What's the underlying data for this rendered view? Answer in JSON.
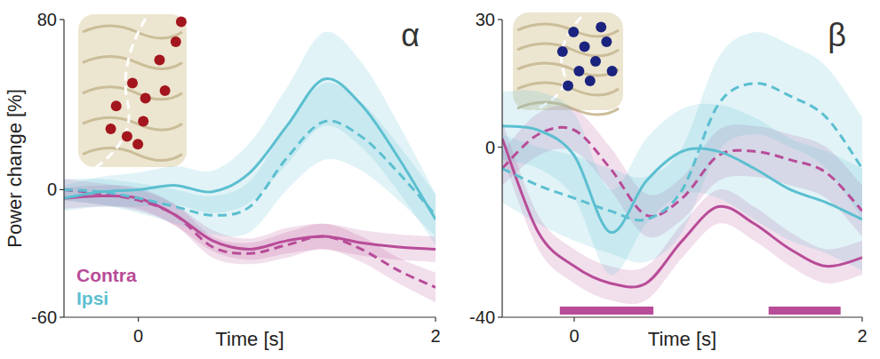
{
  "chart_data": [
    {
      "type": "line",
      "title": "α",
      "x_label": "Time [s]",
      "y_label": "Power change [%]",
      "x": [
        -0.5,
        -0.25,
        0,
        0.25,
        0.5,
        0.75,
        1.0,
        1.25,
        1.5,
        1.75,
        2.0
      ],
      "xlim": [
        -0.5,
        2
      ],
      "xticks": [
        0,
        2
      ],
      "ylim": [
        -60,
        80
      ],
      "yticks": [
        -60,
        0,
        80
      ],
      "legend": "lower left",
      "series": [
        {
          "name": "Contra",
          "color": "#b84c98",
          "line_style": "solid",
          "values": [
            -4,
            -3,
            -4,
            -12,
            -24,
            -28,
            -24,
            -22,
            -25,
            -27,
            -28
          ],
          "error": [
            5,
            5,
            5,
            5,
            5,
            5,
            6,
            6,
            6,
            6,
            6
          ]
        },
        {
          "name": "Contra",
          "color": "#b84c98",
          "line_style": "dashed",
          "values": [
            0,
            -2,
            -5,
            -12,
            -27,
            -30,
            -26,
            -22,
            -28,
            -38,
            -46
          ],
          "error": [
            5,
            5,
            5,
            5,
            5,
            5,
            6,
            6,
            6,
            6,
            7
          ]
        },
        {
          "name": "Ipsi",
          "color": "#5bbfd0",
          "line_style": "solid",
          "values": [
            -4,
            -1,
            0,
            2,
            -1,
            8,
            30,
            52,
            40,
            15,
            -14
          ],
          "error": [
            6,
            7,
            8,
            9,
            10,
            14,
            18,
            22,
            20,
            16,
            12
          ]
        },
        {
          "name": "Ipsi",
          "color": "#5bbfd0",
          "line_style": "dashed",
          "values": [
            0,
            -1,
            -4,
            -8,
            -12,
            -8,
            15,
            32,
            25,
            8,
            -12
          ],
          "error": [
            5,
            6,
            7,
            8,
            9,
            12,
            15,
            18,
            16,
            13,
            10
          ]
        }
      ]
    },
    {
      "type": "line",
      "title": "β",
      "x_label": "Time [s]",
      "x": [
        -0.5,
        -0.25,
        0,
        0.25,
        0.5,
        0.75,
        1.0,
        1.25,
        1.5,
        1.75,
        2.0
      ],
      "xlim": [
        -0.5,
        2
      ],
      "xticks": [
        0,
        2
      ],
      "ylim": [
        -40,
        30
      ],
      "yticks": [
        -40,
        0,
        30
      ],
      "sig_bars": [
        [
          -0.1,
          0.55
        ],
        [
          1.35,
          1.85
        ]
      ],
      "sig_color": "#b84c98",
      "series": [
        {
          "color": "#b84c98",
          "line_style": "solid",
          "values": [
            2,
            -20,
            -28,
            -32,
            -32,
            -22,
            -14,
            -18,
            -24,
            -28,
            -26
          ],
          "error": [
            4,
            4,
            4,
            4,
            4,
            4,
            4,
            4,
            4,
            4,
            4
          ]
        },
        {
          "color": "#b84c98",
          "line_style": "dashed",
          "values": [
            -5,
            3,
            4,
            -5,
            -16,
            -12,
            -2,
            -1,
            -3,
            -6,
            -15
          ],
          "error": [
            4,
            5,
            5,
            5,
            5,
            5,
            6,
            6,
            6,
            6,
            6
          ]
        },
        {
          "color": "#5bbfd0",
          "line_style": "solid",
          "values": [
            5,
            4,
            -2,
            -20,
            -8,
            -1,
            -1,
            -5,
            -10,
            -13,
            -17
          ],
          "error": [
            8,
            9,
            10,
            10,
            10,
            10,
            11,
            12,
            12,
            12,
            12
          ]
        },
        {
          "color": "#5bbfd0",
          "line_style": "dashed",
          "values": [
            -5,
            -9,
            -12,
            -15,
            -17,
            -10,
            10,
            15,
            12,
            7,
            -5
          ],
          "error": [
            8,
            9,
            10,
            10,
            10,
            10,
            11,
            12,
            12,
            12,
            12
          ]
        }
      ]
    }
  ]
}
